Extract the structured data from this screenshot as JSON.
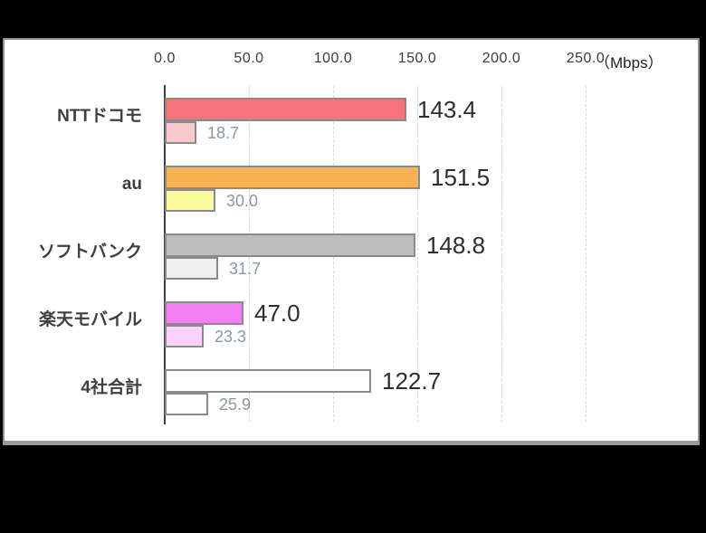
{
  "page": {
    "background_color": "#000000",
    "panel_background": "#ffffff",
    "panel_border_color": "#8f8f8f"
  },
  "chart_data": {
    "type": "bar",
    "orientation": "horizontal",
    "unit_label": "（Mbps）",
    "x_axis": {
      "tick_labels": [
        "0.0",
        "50.0",
        "100.0",
        "150.0",
        "200.0",
        "250.0"
      ],
      "tick_values": [
        0,
        50,
        100,
        150,
        200,
        250
      ],
      "min": 0,
      "max": 250
    },
    "categories": [
      "NTTドコモ",
      "au",
      "ソフトバンク",
      "楽天モバイル",
      "4社合計"
    ],
    "series": [
      {
        "id": "primary",
        "values": [
          143.4,
          151.5,
          148.8,
          47.0,
          122.7
        ],
        "labels": [
          "143.4",
          "151.5",
          "148.8",
          "47.0",
          "122.7"
        ],
        "colors": [
          "#f5747c",
          "#f8b350",
          "#bdbdbd",
          "#f47ff4",
          "#ffffff"
        ]
      },
      {
        "id": "secondary",
        "values": [
          18.7,
          30.0,
          31.7,
          23.3,
          25.9
        ],
        "labels": [
          "18.7",
          "30.0",
          "31.7",
          "23.3",
          "25.9"
        ],
        "colors": [
          "#f7c9cc",
          "#fafc9c",
          "#efefef",
          "#fbd2fb",
          "#ffffff"
        ]
      }
    ],
    "bar_border_color": "#8a8a8a",
    "axis_line_color": "#404040",
    "gridline_color": "#d8d8d8",
    "gridlines_dashed": true,
    "primary_label_color": "#2d2d2d",
    "secondary_label_color": "#8b96a6",
    "legend": "none"
  }
}
